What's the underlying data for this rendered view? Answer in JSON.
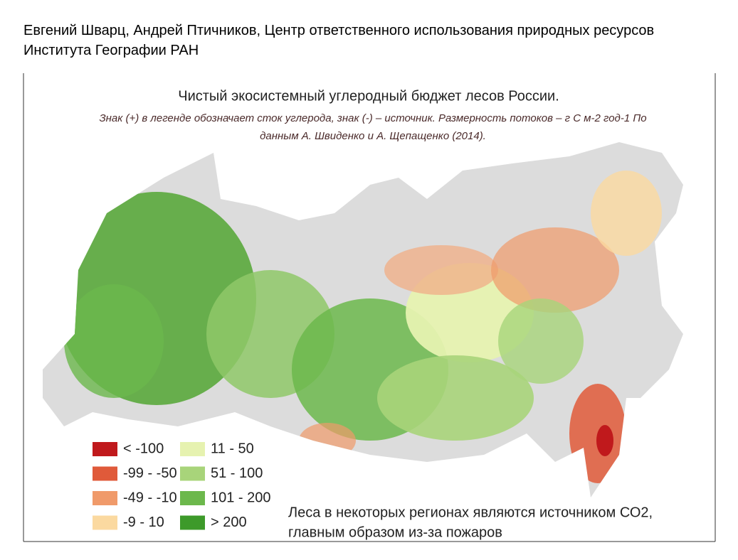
{
  "header": {
    "authors": "Евгений Шварц, Андрей Птичников,  Центр ответственного использования природных ресурсов",
    "institute": "Института Географии РАН"
  },
  "map": {
    "title": "Чистый экосистемный углеродный бюджет лесов России.",
    "subtitle_line1": "Знак (+) в легенде обозначает сток углерода, знак (-) – источник. Размерность потоков – г С м-2 год-1 По",
    "subtitle_line2": "данным А. Швиденко и А. Щепащенко (2014).",
    "legend": {
      "items": [
        {
          "label": "< -100",
          "color": "#c0191c"
        },
        {
          "label": "-99 - -50",
          "color": "#e05a3a"
        },
        {
          "label": "-49 - -10",
          "color": "#f09a6a"
        },
        {
          "label": "-9 - 10",
          "color": "#fbd9a0"
        },
        {
          "label": "11 - 50",
          "color": "#e6f2b0"
        },
        {
          "label": "51 - 100",
          "color": "#a8d47a"
        },
        {
          "label": "101 - 200",
          "color": "#6cb84c"
        },
        {
          "label": "> 200",
          "color": "#3d9a2a"
        }
      ]
    },
    "note_line1": "Леса в некоторых регионах являются источником СО2,",
    "note_line2": "главным образом из-за пожаров"
  }
}
